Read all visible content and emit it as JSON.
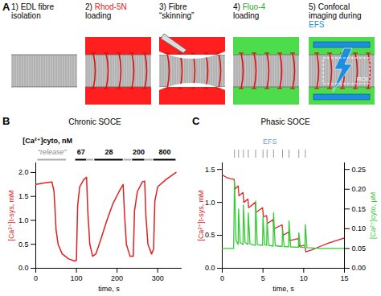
{
  "diagram": {
    "label": "A",
    "steps": [
      {
        "lines": [
          [
            {
              "text": "1) EDL fibre"
            }
          ],
          [
            {
              "text": "isolation"
            }
          ]
        ]
      },
      {
        "lines": [
          [
            {
              "text": "2) "
            },
            {
              "text": "Rhod-5N",
              "color": "#e31a1c"
            }
          ],
          [
            {
              "text": "loading"
            }
          ]
        ]
      },
      {
        "lines": [
          [
            {
              "text": "3) Fibre"
            }
          ],
          [
            {
              "text": "“skinning”"
            }
          ]
        ]
      },
      {
        "lines": [
          [
            {
              "text": "4) "
            },
            {
              "text": "Fluo-4",
              "color": "#1fa81f"
            }
          ],
          [
            {
              "text": "loading"
            }
          ]
        ]
      },
      {
        "lines": [
          [
            {
              "text": "5) Confocal"
            }
          ],
          [
            {
              "text": "imaging during"
            }
          ],
          [
            {
              "text": "EFS",
              "color": "#1e8fe0"
            }
          ]
        ],
        "inner_label": "ROI"
      }
    ]
  },
  "chart_data": [
    {
      "panel": "B",
      "type": "line",
      "title": "Chronic SOCE",
      "x": [
        0,
        20,
        40,
        45,
        50,
        55,
        65,
        80,
        95,
        100,
        103,
        108,
        118,
        125,
        128,
        133,
        140,
        148,
        160,
        175,
        190,
        205,
        215,
        218,
        223,
        232,
        240,
        243,
        250,
        262,
        268,
        271,
        276,
        285,
        290,
        293,
        300,
        320,
        345
      ],
      "values": [
        1.75,
        1.78,
        1.8,
        1.6,
        0.8,
        0.5,
        0.3,
        0.2,
        0.15,
        0.16,
        1.3,
        1.7,
        1.85,
        1.9,
        1.2,
        0.5,
        0.25,
        0.3,
        0.6,
        1.0,
        1.35,
        1.6,
        1.75,
        1.2,
        0.5,
        0.25,
        0.25,
        1.2,
        1.6,
        1.8,
        1.82,
        1.1,
        0.5,
        0.3,
        0.4,
        1.4,
        1.7,
        1.85,
        2.0
      ],
      "color": "#e02020",
      "xlabel": "time, s",
      "ylabel": "[Ca²⁺]t-sys, mM",
      "xlim": [
        0,
        360
      ],
      "xticks": [
        0,
        100,
        200,
        300
      ],
      "ylim": [
        0,
        2.2
      ],
      "yticks": [
        {
          "value": 0,
          "label": "0.0"
        },
        {
          "value": 0.5,
          "label": "0.5"
        },
        {
          "value": 1,
          "label": "1.0"
        },
        {
          "value": 1.5,
          "label": "1.5"
        },
        {
          "value": 2,
          "label": "2.0"
        }
      ],
      "cyto_levels": {
        "title": "[Ca²⁺]cyto, nM",
        "levels": [
          {
            "value": 67,
            "x0": 98,
            "x1": 125
          },
          {
            "value": 28,
            "x0": 145,
            "x1": 215
          },
          {
            "value": 200,
            "x0": 238,
            "x1": 268
          },
          {
            "value": 800,
            "x0": 290,
            "x1": 345
          }
        ],
        "release": {
          "label": "“release”",
          "periods": [
            [
              5,
              75
            ],
            [
              126,
              142
            ],
            [
              217,
              236
            ],
            [
              269,
              288
            ]
          ]
        }
      }
    },
    {
      "panel": "C",
      "type": "line",
      "title": "Phasic SOCE",
      "series": [
        {
          "color": "#e02020",
          "axis": "y",
          "x": [
            0,
            0.5,
            1.0,
            1.45,
            1.55,
            1.95,
            2.05,
            2.55,
            2.65,
            3.15,
            3.25,
            4.05,
            4.15,
            4.95,
            5.05,
            5.45,
            5.55,
            6.25,
            6.35,
            7.35,
            7.45,
            8.15,
            8.25,
            9.35,
            9.45,
            10.15,
            10.25,
            11,
            12,
            13,
            14,
            15
          ],
          "values": [
            1.42,
            1.38,
            1.36,
            1.35,
            1.2,
            1.25,
            1.1,
            1.15,
            1.0,
            1.05,
            0.92,
            1.0,
            0.85,
            0.92,
            0.78,
            0.8,
            0.68,
            0.74,
            0.6,
            0.66,
            0.5,
            0.55,
            0.42,
            0.45,
            0.33,
            0.35,
            0.25,
            0.28,
            0.33,
            0.38,
            0.42,
            0.46
          ]
        },
        {
          "color": "#33cc33",
          "axis": "y2",
          "x": [
            0,
            1.4,
            1.5,
            1.7,
            1.95,
            2.0,
            2.2,
            2.55,
            2.6,
            2.8,
            3.15,
            3.2,
            3.4,
            4.05,
            4.1,
            4.3,
            4.95,
            5.0,
            5.2,
            5.45,
            5.5,
            5.7,
            6.25,
            6.3,
            6.5,
            7.35,
            7.4,
            7.6,
            8.15,
            8.2,
            8.4,
            9.35,
            9.4,
            9.6,
            10.15,
            10.2,
            10.4,
            12,
            15
          ],
          "values": [
            0.05,
            0.05,
            0.22,
            0.07,
            0.06,
            0.15,
            0.065,
            0.06,
            0.16,
            0.065,
            0.06,
            0.14,
            0.062,
            0.058,
            0.17,
            0.06,
            0.058,
            0.13,
            0.06,
            0.058,
            0.12,
            0.058,
            0.056,
            0.14,
            0.057,
            0.055,
            0.1,
            0.055,
            0.054,
            0.12,
            0.054,
            0.053,
            0.09,
            0.053,
            0.052,
            0.11,
            0.052,
            0.05,
            0.05
          ]
        }
      ],
      "xlabel": "time, s",
      "ylabel": "[Ca²⁺]t-sys, mM",
      "y2label": "[Ca²⁺]cyto, µM",
      "xlim": [
        0,
        15
      ],
      "xticks": [
        0,
        5,
        10,
        15
      ],
      "ylim": [
        0,
        1.6
      ],
      "yticks": [
        {
          "value": 0,
          "label": "0.0"
        },
        {
          "value": 0.5,
          "label": "0.5"
        },
        {
          "value": 1,
          "label": "1.0"
        },
        {
          "value": 1.5,
          "label": "1.5"
        }
      ],
      "y2lim": [
        0,
        0.2667
      ],
      "y2ticks": [
        {
          "value": 0,
          "label": "0.00"
        },
        {
          "value": 0.05,
          "label": "0.05"
        },
        {
          "value": 0.1,
          "label": "0.10"
        },
        {
          "value": 0.15,
          "label": "0.15"
        },
        {
          "value": 0.2,
          "label": "0.20"
        },
        {
          "value": 0.25,
          "label": "0.25"
        }
      ],
      "efs": {
        "label": "EFS",
        "times": [
          1.5,
          2.0,
          2.6,
          3.2,
          4.1,
          5.0,
          5.5,
          6.3,
          7.4,
          8.2,
          9.4,
          10.2
        ]
      }
    }
  ]
}
